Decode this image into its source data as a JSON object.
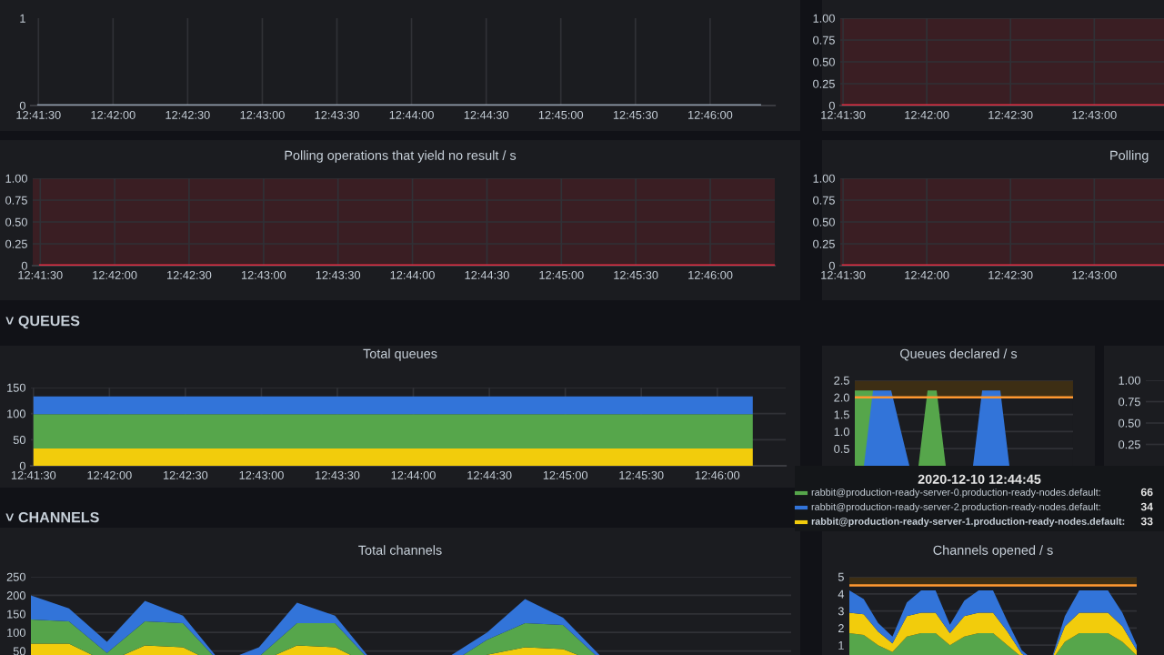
{
  "chart_data": [
    {
      "type": "line",
      "x": [
        12.69167,
        12.77222
      ],
      "series": [
        {
          "color": "#8e9aa8",
          "values": [
            0,
            0
          ]
        }
      ],
      "xlim": [
        12.69083,
        12.77389
      ],
      "ylim": [
        0,
        1
      ],
      "yticks": [
        0,
        1
      ],
      "xticks": [
        {
          "value": 12.69167,
          "label": "12:41:30"
        },
        {
          "value": 12.7,
          "label": "12:42:00"
        },
        {
          "value": 12.70833,
          "label": "12:42:30"
        },
        {
          "value": 12.71667,
          "label": "12:43:00"
        },
        {
          "value": 12.725,
          "label": "12:43:30"
        },
        {
          "value": 12.73333,
          "label": "12:44:00"
        },
        {
          "value": 12.74167,
          "label": "12:44:30"
        },
        {
          "value": 12.75,
          "label": "12:45:00"
        },
        {
          "value": 12.75833,
          "label": "12:45:30"
        },
        {
          "value": 12.76667,
          "label": "12:46:00"
        }
      ],
      "grid": "x"
    },
    {
      "type": "line",
      "x": [
        12.69167,
        12.72361
      ],
      "series": [
        {
          "color": "#e02f44",
          "values": [
            0,
            0
          ]
        }
      ],
      "xlim": [
        12.69139,
        12.72361
      ],
      "ylim": [
        0,
        1
      ],
      "yticks": [
        0,
        {
          "value": 0.25,
          "label": "0.25"
        },
        {
          "value": 0.5,
          "label": "0.50"
        },
        {
          "value": 0.75,
          "label": "0.75"
        },
        {
          "value": 1,
          "label": "1.00"
        }
      ],
      "xticks": [
        {
          "value": 12.69167,
          "label": "12:41:30"
        },
        {
          "value": 12.7,
          "label": "12:42:00"
        },
        {
          "value": 12.70833,
          "label": "12:42:30"
        },
        {
          "value": 12.71667,
          "label": "12:43:00"
        }
      ],
      "bands": [
        {
          "axis": "y",
          "from": 0,
          "to": 1,
          "color": "#3a1e23"
        }
      ],
      "grid": true
    },
    {
      "type": "line",
      "title": "Polling operations that yield no result / s",
      "x": [
        12.69167,
        12.77389
      ],
      "series": [
        {
          "color": "#e02f44",
          "values": [
            0,
            0
          ]
        }
      ],
      "xlim": [
        12.69083,
        12.77389
      ],
      "ylim": [
        0,
        1
      ],
      "yticks": [
        0,
        {
          "value": 0.25,
          "label": "0.25"
        },
        {
          "value": 0.5,
          "label": "0.50"
        },
        {
          "value": 0.75,
          "label": "0.75"
        },
        {
          "value": 1,
          "label": "1.00"
        }
      ],
      "xticks": [
        {
          "value": 12.69167,
          "label": "12:41:30"
        },
        {
          "value": 12.7,
          "label": "12:42:00"
        },
        {
          "value": 12.70833,
          "label": "12:42:30"
        },
        {
          "value": 12.71667,
          "label": "12:43:00"
        },
        {
          "value": 12.725,
          "label": "12:43:30"
        },
        {
          "value": 12.73333,
          "label": "12:44:00"
        },
        {
          "value": 12.74167,
          "label": "12:44:30"
        },
        {
          "value": 12.75,
          "label": "12:45:00"
        },
        {
          "value": 12.75833,
          "label": "12:45:30"
        },
        {
          "value": 12.76667,
          "label": "12:46:00"
        }
      ],
      "bands": [
        {
          "axis": "y",
          "from": 0,
          "to": 1,
          "color": "#3a1e23"
        }
      ],
      "grid": true
    },
    {
      "type": "line",
      "title": "Polling",
      "x": [
        12.69167,
        12.72361
      ],
      "series": [
        {
          "color": "#e02f44",
          "values": [
            0,
            0
          ]
        }
      ],
      "xlim": [
        12.69139,
        12.72361
      ],
      "ylim": [
        0,
        1
      ],
      "yticks": [
        0,
        {
          "value": 0.25,
          "label": "0.25"
        },
        {
          "value": 0.5,
          "label": "0.50"
        },
        {
          "value": 0.75,
          "label": "0.75"
        },
        {
          "value": 1,
          "label": "1.00"
        }
      ],
      "xticks": [
        {
          "value": 12.69167,
          "label": "12:41:30"
        },
        {
          "value": 12.7,
          "label": "12:42:00"
        },
        {
          "value": 12.70833,
          "label": "12:42:30"
        },
        {
          "value": 12.71667,
          "label": "12:43:00"
        }
      ],
      "bands": [
        {
          "axis": "y",
          "from": 0,
          "to": 1,
          "color": "#3a1e23"
        }
      ],
      "grid": true
    },
    {
      "type": "area",
      "stacked": true,
      "title": "Total queues",
      "annotations": [
        "˅ QUEUES",
        "66",
        "34",
        "33"
      ],
      "x": [
        12.69167,
        12.77056
      ],
      "series": [
        {
          "name": "rabbit@production-ready-server-1.production-ready-nodes.default:",
          "color": "#f2cc0c",
          "values": [
            33,
            33
          ]
        },
        {
          "name": "rabbit@production-ready-server-0.production-ready-nodes.default:",
          "color": "#56a64b",
          "values": [
            66,
            66
          ]
        },
        {
          "name": "rabbit@production-ready-server-2.production-ready-nodes.default:",
          "color": "#3274d9",
          "values": [
            34,
            34
          ]
        }
      ],
      "legend": "bottom right",
      "legend_title": "2020-12-10 12:44:45",
      "xlim": [
        12.69139,
        12.77417
      ],
      "ylim": [
        0,
        150
      ],
      "yticks": [
        0,
        50,
        100,
        150
      ],
      "xticks": [
        {
          "value": 12.69167,
          "label": "12:41:30"
        },
        {
          "value": 12.7,
          "label": "12:42:00"
        },
        {
          "value": 12.70833,
          "label": "12:42:30"
        },
        {
          "value": 12.71667,
          "label": "12:43:00"
        },
        {
          "value": 12.725,
          "label": "12:43:30"
        },
        {
          "value": 12.73333,
          "label": "12:44:00"
        },
        {
          "value": 12.74167,
          "label": "12:44:30"
        },
        {
          "value": 12.75,
          "label": "12:45:00"
        },
        {
          "value": 12.75833,
          "label": "12:45:30"
        },
        {
          "value": 12.76667,
          "label": "12:46:00"
        }
      ],
      "grid": true
    },
    {
      "type": "area",
      "title": "Queues declared / s",
      "categories": [
        null,
        null,
        null,
        null,
        null,
        null,
        null,
        null,
        null,
        null,
        null,
        null,
        null,
        null,
        null,
        null,
        null,
        null,
        null,
        null,
        null,
        null,
        null,
        null,
        null
      ],
      "series": [
        {
          "color": "#56a64b",
          "values": [
            2.2,
            2.2,
            2.2,
            0,
            0,
            0,
            0,
            0,
            2.2,
            2.2,
            0,
            0,
            0,
            0,
            0,
            0,
            0,
            0,
            0,
            0,
            0,
            0,
            0,
            0,
            0
          ]
        },
        {
          "color": "#3274d9",
          "values": [
            null,
            0,
            2.2,
            2.2,
            2.2,
            1.1,
            0,
            0,
            0,
            0,
            0,
            0,
            0,
            0,
            2.2,
            2.2,
            2.2,
            0,
            0,
            0,
            0,
            0,
            0,
            0,
            0
          ]
        }
      ],
      "ylim": [
        0,
        2.5
      ],
      "yticks": [
        0.5,
        {
          "value": 1,
          "label": "1.0"
        },
        1.5,
        {
          "value": 2,
          "label": "2.0"
        },
        2.5
      ],
      "ref_lines": [
        {
          "axis": "y",
          "value": 2,
          "color": "#ff9830"
        }
      ],
      "bands": [
        {
          "axis": "y",
          "from": 2,
          "to": 2.5,
          "color": "#3d2e14"
        }
      ],
      "tick_labels": "y",
      "grid": "y"
    },
    {
      "type": "line",
      "categories": [
        null,
        null
      ],
      "series": [
        {
          "color": "#8e9aa8",
          "values": [
            null,
            null
          ]
        }
      ],
      "ylim": [
        0,
        1
      ],
      "yticks": [
        {
          "value": 0.25,
          "label": "0.25"
        },
        {
          "value": 0.5,
          "label": "0.50"
        },
        {
          "value": 0.75,
          "label": "0.75"
        },
        {
          "value": 1,
          "label": "1.00"
        }
      ],
      "tick_labels": "y",
      "grid": "y"
    },
    {
      "type": "area",
      "stacked": true,
      "title": "Total channels",
      "annotations": [
        "˅ CHANNELS"
      ],
      "categories": [
        null,
        null,
        null,
        null,
        null,
        null,
        null,
        null,
        null,
        null,
        null,
        null,
        null,
        null,
        null,
        null,
        null,
        null,
        null,
        null,
        null
      ],
      "series": [
        {
          "color": "#f2cc0c",
          "values": [
            70,
            70,
            20,
            65,
            60,
            10,
            20,
            65,
            60,
            10,
            0,
            10,
            40,
            60,
            55,
            15,
            0,
            0,
            0,
            0,
            0
          ]
        },
        {
          "color": "#56a64b",
          "values": [
            65,
            60,
            25,
            65,
            65,
            5,
            15,
            60,
            65,
            5,
            0,
            5,
            40,
            65,
            65,
            10,
            0,
            0,
            0,
            0,
            0
          ]
        },
        {
          "color": "#3274d9",
          "values": [
            65,
            35,
            30,
            55,
            20,
            5,
            25,
            55,
            20,
            5,
            0,
            20,
            20,
            65,
            20,
            10,
            0,
            0,
            0,
            0,
            0
          ]
        }
      ],
      "ylim": [
        0,
        250
      ],
      "yticks": [
        50,
        100,
        150,
        200,
        250
      ],
      "tick_labels": "y",
      "grid": "y"
    },
    {
      "type": "area",
      "stacked": true,
      "title": "Channels opened / s",
      "categories": [
        null,
        null,
        null,
        null,
        null,
        null,
        null,
        null,
        null,
        null,
        null,
        null,
        null,
        null,
        null,
        null,
        null,
        null,
        null,
        null,
        null
      ],
      "series": [
        {
          "color": "#56a64b",
          "values": [
            1.7,
            1.6,
            1.0,
            0.6,
            1.5,
            1.7,
            1.7,
            1.0,
            1.5,
            1.7,
            1.7,
            1.0,
            0.3,
            0,
            0,
            1.2,
            1.7,
            1.7,
            1.7,
            1.2,
            0.4
          ]
        },
        {
          "color": "#f2cc0c",
          "values": [
            1.2,
            1.2,
            0.8,
            0.5,
            1.2,
            1.2,
            1.2,
            0.7,
            1.2,
            1.2,
            1.2,
            0.8,
            0.2,
            0,
            0,
            0.9,
            1.2,
            1.2,
            1.2,
            0.9,
            0.3
          ]
        },
        {
          "color": "#3274d9",
          "values": [
            1.3,
            0.9,
            0.5,
            0.4,
            0.8,
            1.3,
            1.3,
            0.5,
            0.9,
            1.3,
            1.3,
            0.6,
            0.2,
            0,
            0,
            0.6,
            1.3,
            1.3,
            1.3,
            0.8,
            0.3
          ]
        }
      ],
      "ylim": [
        0,
        5
      ],
      "yticks": [
        1,
        2,
        3,
        4,
        5
      ],
      "ref_lines": [
        {
          "axis": "y",
          "value": 4.5,
          "color": "#ff9830"
        }
      ],
      "bands": [
        {
          "axis": "y",
          "from": 4.5,
          "to": 5,
          "color": "#3d2e14"
        }
      ],
      "tick_labels": "y",
      "grid": "y"
    }
  ]
}
